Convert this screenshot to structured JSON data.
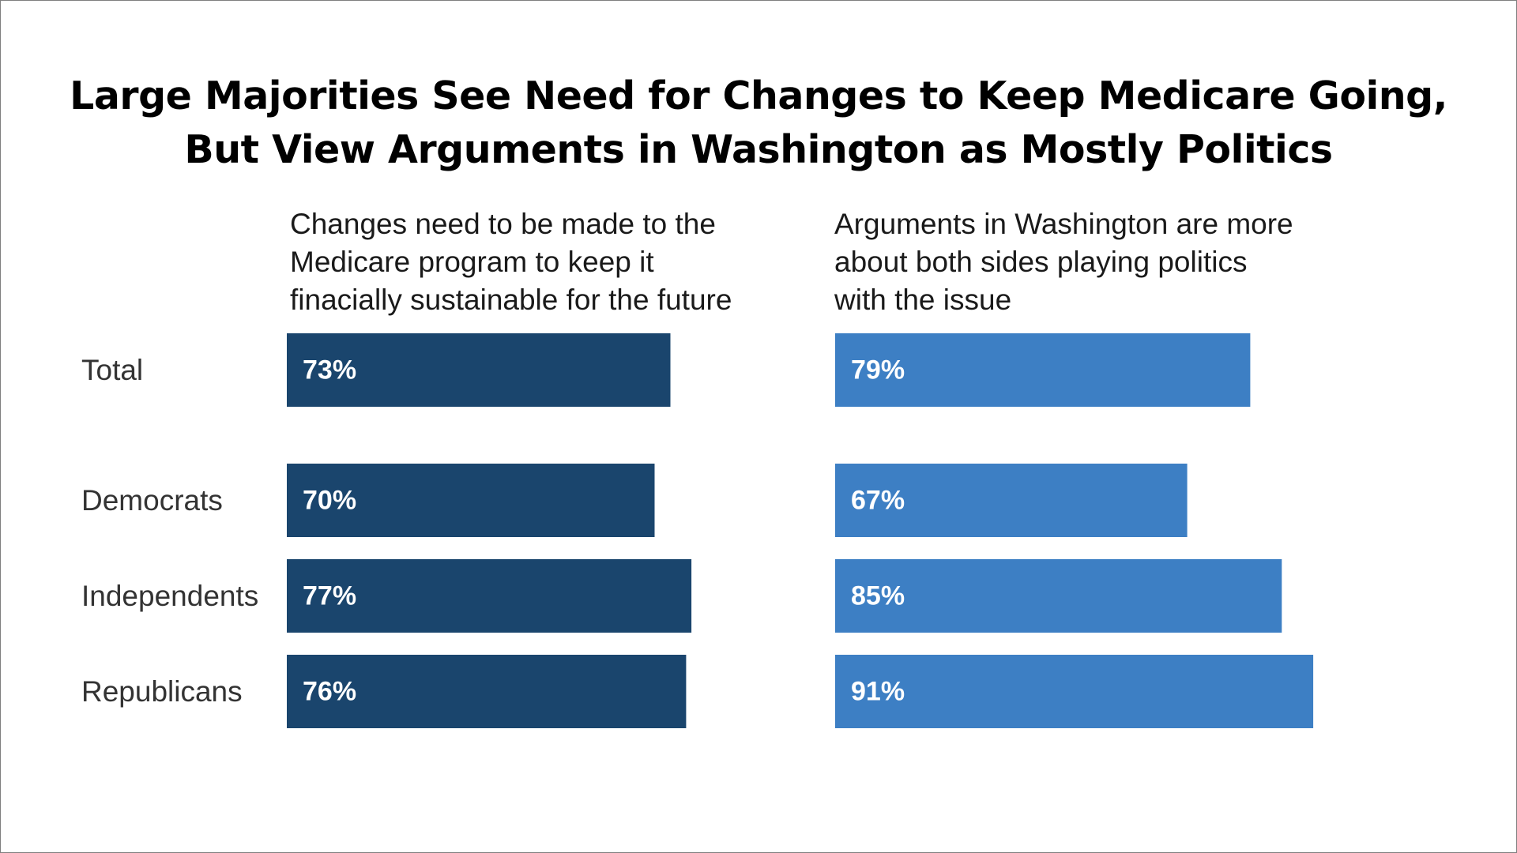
{
  "colors": {
    "changes_series": "#1a456d",
    "politics_series": "#3d7fc4",
    "bar_label": "#ffffff",
    "category_text": "#333333"
  },
  "chart_data": {
    "type": "bar",
    "orientation": "horizontal",
    "title": "Large Majorities See Need for Changes to Keep Medicare Going, But View Arguments in Washington as Mostly Politics",
    "title_lines": [
      "Large Majorities See Need for Changes to Keep Medicare Going,",
      "But View Arguments in Washington as Mostly Politics"
    ],
    "categories": [
      "Total",
      "Democrats",
      "Independents",
      "Republicans"
    ],
    "series": [
      {
        "name": "Changes need to be made to the Medicare program to keep it finacially sustainable for the future",
        "heading_lines": "Changes need to be made to the\nMedicare program to keep it\nfinacially sustainable for the future",
        "color": "#1a456d",
        "values": [
          73,
          70,
          77,
          76
        ],
        "labels": [
          "73%",
          "70%",
          "77%",
          "76%"
        ]
      },
      {
        "name": "Arguments in Washington are more about both sides playing politics with the issue",
        "heading_lines": "Arguments in Washington are more\nabout both sides playing politics\nwith the issue",
        "color": "#3d7fc4",
        "values": [
          79,
          67,
          85,
          91
        ],
        "labels": [
          "79%",
          "67%",
          "85%",
          "91%"
        ]
      }
    ],
    "xlim": [
      0,
      100
    ],
    "grid": false,
    "legend": "none"
  }
}
